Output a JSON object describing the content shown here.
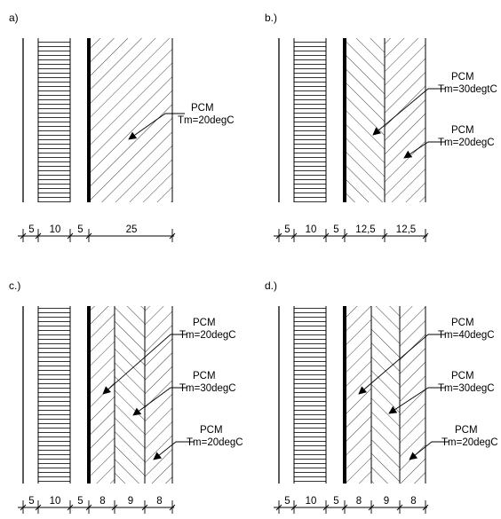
{
  "panels": [
    {
      "label": "a)",
      "layers": [
        {
          "thickness": "5",
          "fill": "blank"
        },
        {
          "thickness": "10",
          "fill": "horizontal"
        },
        {
          "thickness": "5",
          "fill": "blank"
        },
        {
          "thickness": "25",
          "fill": "hatch-forward"
        }
      ],
      "annotations": [
        {
          "line1": "PCM",
          "line2": "Tm=20degC",
          "layer": 3
        }
      ]
    },
    {
      "label": "b.)",
      "layers": [
        {
          "thickness": "5",
          "fill": "blank"
        },
        {
          "thickness": "10",
          "fill": "horizontal"
        },
        {
          "thickness": "5",
          "fill": "blank"
        },
        {
          "thickness": "12,5",
          "fill": "hatch-back"
        },
        {
          "thickness": "12,5",
          "fill": "hatch-forward"
        }
      ],
      "annotations": [
        {
          "line1": "PCM",
          "line2": "Tm=30degtC",
          "layer": 3
        },
        {
          "line1": "PCM",
          "line2": "Tm=20degC",
          "layer": 4
        }
      ]
    },
    {
      "label": "c.)",
      "layers": [
        {
          "thickness": "5",
          "fill": "blank"
        },
        {
          "thickness": "10",
          "fill": "horizontal"
        },
        {
          "thickness": "5",
          "fill": "blank"
        },
        {
          "thickness": "8",
          "fill": "hatch-forward"
        },
        {
          "thickness": "9",
          "fill": "hatch-back"
        },
        {
          "thickness": "8",
          "fill": "hatch-forward"
        }
      ],
      "annotations": [
        {
          "line1": "PCM",
          "line2": "Tm=20degC",
          "layer": 3
        },
        {
          "line1": "PCM",
          "line2": "Tm=30degC",
          "layer": 4
        },
        {
          "line1": "PCM",
          "line2": "Tm=20degC",
          "layer": 5
        }
      ]
    },
    {
      "label": "d.)",
      "layers": [
        {
          "thickness": "5",
          "fill": "blank"
        },
        {
          "thickness": "10",
          "fill": "horizontal"
        },
        {
          "thickness": "5",
          "fill": "blank"
        },
        {
          "thickness": "8",
          "fill": "hatch-forward"
        },
        {
          "thickness": "9",
          "fill": "hatch-back"
        },
        {
          "thickness": "8",
          "fill": "hatch-forward"
        }
      ],
      "annotations": [
        {
          "line1": "PCM",
          "line2": "Tm=40degC",
          "layer": 3
        },
        {
          "line1": "PCM",
          "line2": "Tm=30degC",
          "layer": 4
        },
        {
          "line1": "PCM",
          "line2": "Tm=20degC",
          "layer": 5
        }
      ]
    }
  ]
}
